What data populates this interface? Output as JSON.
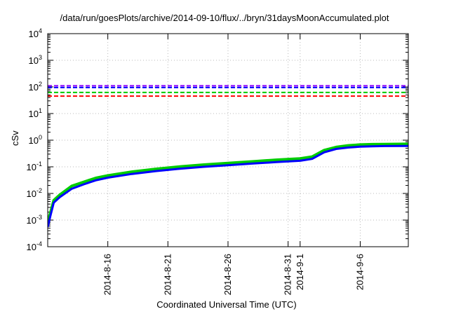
{
  "chart_data": {
    "type": "line",
    "title": "/data/run/goesPlots/archive/2014-09-10/flux/../bryn/31daysMoonAccumulated.plot",
    "xlabel": "Coordinated Universal Time (UTC)",
    "ylabel": "cSv",
    "yscale": "log",
    "ylim": [
      0.0001,
      10000
    ],
    "xlim": [
      "2014-08-11",
      "2014-09-10"
    ],
    "grid": true,
    "y_ticks": [
      {
        "value": 0.0001,
        "base": "10",
        "exp": "-4"
      },
      {
        "value": 0.001,
        "base": "10",
        "exp": "-3"
      },
      {
        "value": 0.01,
        "base": "10",
        "exp": "-2"
      },
      {
        "value": 0.1,
        "base": "10",
        "exp": "-1"
      },
      {
        "value": 1,
        "base": "10",
        "exp": "0"
      },
      {
        "value": 10,
        "base": "10",
        "exp": "1"
      },
      {
        "value": 100,
        "base": "10",
        "exp": "2"
      },
      {
        "value": 1000,
        "base": "10",
        "exp": "3"
      },
      {
        "value": 10000,
        "base": "10",
        "exp": "4"
      }
    ],
    "x_ticks": [
      {
        "date": "2014-08-16",
        "label": "2014-8-16"
      },
      {
        "date": "2014-08-21",
        "label": "2014-8-21"
      },
      {
        "date": "2014-08-26",
        "label": "2014-8-26"
      },
      {
        "date": "2014-08-31",
        "label": "2014-8-31"
      },
      {
        "date": "2014-09-01",
        "label": "2014-9-1"
      },
      {
        "date": "2014-09-06",
        "label": "2014-9-6"
      }
    ],
    "reference_lines": [
      {
        "value": 110,
        "color": "#8b00ff"
      },
      {
        "value": 95,
        "color": "#0000ff"
      },
      {
        "value": 62,
        "color": "#00cc00"
      },
      {
        "value": 45,
        "color": "#ff0000"
      }
    ],
    "series": [
      {
        "color": "#00cc00",
        "x": [
          "2014-08-11",
          "2014-08-11T06:00",
          "2014-08-11T12:00",
          "2014-08-12",
          "2014-08-13",
          "2014-08-14",
          "2014-08-15",
          "2014-08-16",
          "2014-08-18",
          "2014-08-20",
          "2014-08-22",
          "2014-08-24",
          "2014-08-26",
          "2014-08-28",
          "2014-08-30",
          "2014-09-01",
          "2014-09-02",
          "2014-09-03",
          "2014-09-04",
          "2014-09-05",
          "2014-09-06",
          "2014-09-07",
          "2014-09-08",
          "2014-09-10"
        ],
        "values": [
          0.0008,
          0.0021,
          0.0055,
          0.0088,
          0.019,
          0.027,
          0.038,
          0.047,
          0.065,
          0.083,
          0.101,
          0.12,
          0.138,
          0.158,
          0.182,
          0.205,
          0.24,
          0.42,
          0.55,
          0.63,
          0.68,
          0.7,
          0.71,
          0.72
        ]
      },
      {
        "color": "#0000ff",
        "x": [
          "2014-08-11",
          "2014-08-11T06:00",
          "2014-08-11T12:00",
          "2014-08-12",
          "2014-08-13",
          "2014-08-14",
          "2014-08-15",
          "2014-08-16",
          "2014-08-18",
          "2014-08-20",
          "2014-08-22",
          "2014-08-24",
          "2014-08-26",
          "2014-08-28",
          "2014-08-30",
          "2014-09-01",
          "2014-09-02",
          "2014-09-03",
          "2014-09-04",
          "2014-09-05",
          "2014-09-06",
          "2014-09-07",
          "2014-09-08",
          "2014-09-10"
        ],
        "values": [
          0.00055,
          0.0016,
          0.0045,
          0.0072,
          0.015,
          0.022,
          0.031,
          0.039,
          0.054,
          0.069,
          0.085,
          0.1,
          0.115,
          0.132,
          0.15,
          0.168,
          0.198,
          0.35,
          0.47,
          0.53,
          0.57,
          0.59,
          0.6,
          0.61
        ]
      }
    ]
  }
}
